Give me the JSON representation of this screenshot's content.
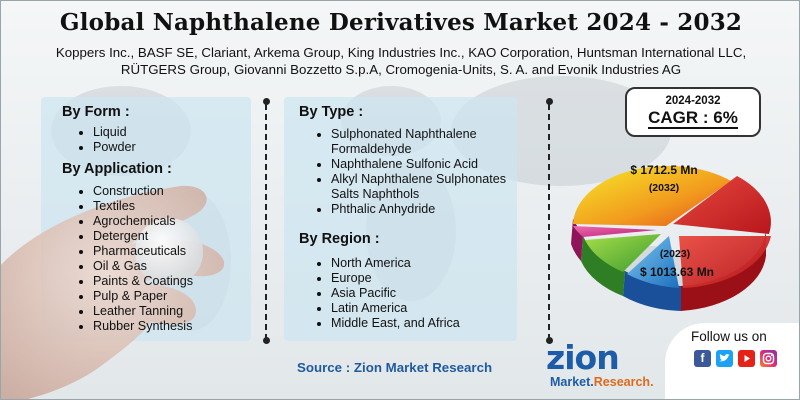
{
  "title": "Global Naphthalene Derivatives Market 2024 - 2032",
  "companies": "Koppers Inc., BASF SE, Clariant, Arkema Group, King Industries Inc., KAO Corporation, Huntsman International LLC, RÜTGERS Group, Giovanni Bozzetto S.p.A, Cromogenia-Units, S. A. and Evonik Industries AG",
  "by_form": {
    "heading": "By Form  :",
    "items": [
      "Liquid",
      "Powder"
    ]
  },
  "by_application": {
    "heading": "By Application :",
    "items": [
      "Construction",
      "Textiles",
      "Agrochemicals",
      "Detergent",
      "Pharmaceuticals",
      "Oil & Gas",
      "Paints & Coatings",
      "Pulp & Paper",
      "Leather Tanning",
      "Rubber Synthesis"
    ]
  },
  "by_type": {
    "heading": "By Type :",
    "items": [
      "Sulphonated Naphthalene Formaldehyde",
      "Naphthalene Sulfonic Acid",
      "Alkyl Naphthalene Sulphonates Salts Naphthols",
      "Phthalic Anhydride"
    ]
  },
  "by_region": {
    "heading": "By Region :",
    "items": [
      "North America",
      "Europe",
      "Asia Pacific",
      "Latin America",
      "Middle East, and Africa"
    ]
  },
  "cagr": {
    "years": "2024-2032",
    "label": "CAGR : 6%"
  },
  "market_2032": {
    "value": "$ 1712.5 Mn",
    "year": "(2032)"
  },
  "market_2023": {
    "year": "(2023)",
    "value": "$ 1013.63 Mn"
  },
  "source": "Source : Zion Market Research",
  "logo": {
    "name": "zion",
    "sub_a": "Market.",
    "sub_b": "Research."
  },
  "social": {
    "heading": "Follow us on",
    "icons": [
      "facebook-icon",
      "twitter-icon",
      "youtube-icon",
      "instagram-icon"
    ]
  },
  "colors": {
    "source": "#1e5a9e",
    "logo": "#1c5ca8",
    "logo_accent": "#e06a1b"
  }
}
